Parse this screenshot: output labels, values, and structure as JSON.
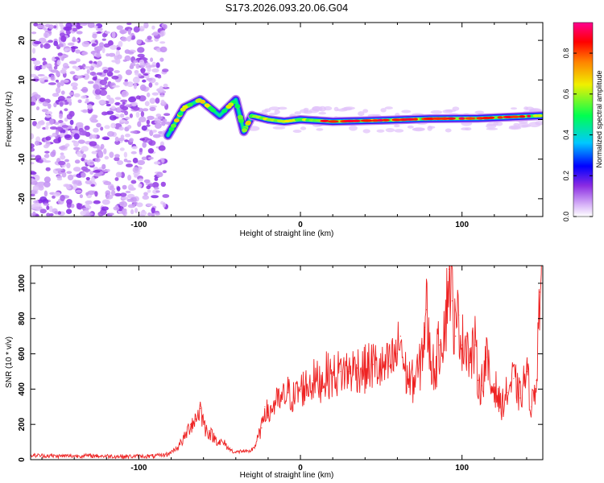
{
  "chart_data": [
    {
      "type": "heatmap",
      "title": "S173.2026.093.20.06.G04",
      "xlabel": "Height of straight line (km)",
      "ylabel": "Frequency (Hz)",
      "xlim": [
        -167,
        150
      ],
      "ylim": [
        -24.5,
        24.5
      ],
      "x_ticks": [
        -100,
        0,
        100
      ],
      "y_ticks": [
        -20,
        -10,
        0,
        10,
        20
      ],
      "colorbar": {
        "label": "Normalized spectral amplitude",
        "range": [
          0.0,
          0.95
        ],
        "ticks": [
          0.0,
          0.2,
          0.4,
          0.6,
          0.8
        ],
        "colors": [
          "#ffffff",
          "#d8b4f8",
          "#8a2be2",
          "#0000ff",
          "#00c8ff",
          "#00ff50",
          "#f0f000",
          "#ff8000",
          "#ff0000",
          "#ff0090"
        ]
      },
      "features": [
        {
          "name": "noise region",
          "x_range": [
            -167,
            -83
          ],
          "f_range": [
            -24.5,
            24.5
          ],
          "amplitude": 0.05
        },
        {
          "name": "diagonal streaks",
          "points": [
            [
              -82,
              -4
            ],
            [
              -72,
              3
            ],
            [
              -62,
              5
            ],
            [
              -50,
              1
            ],
            [
              -40,
              5
            ],
            [
              -35,
              -3
            ],
            [
              -30,
              1
            ]
          ],
          "amplitude": 0.3
        },
        {
          "name": "main signal trace",
          "points": [
            [
              -30,
              1
            ],
            [
              -20,
              0
            ],
            [
              -10,
              -0.5
            ],
            [
              0,
              0
            ],
            [
              20,
              -0.5
            ],
            [
              50,
              -0.2
            ],
            [
              80,
              0.2
            ],
            [
              110,
              0.3
            ],
            [
              150,
              1
            ]
          ],
          "amplitude": 0.8
        }
      ]
    },
    {
      "type": "line",
      "title": "",
      "xlabel": "Height of straight line (km)",
      "ylabel": "SNR (10 * v/v)",
      "xlim": [
        -167,
        150
      ],
      "ylim": [
        0,
        1100
      ],
      "x_ticks": [
        -100,
        0,
        100
      ],
      "y_ticks": [
        0,
        200,
        400,
        600,
        800,
        1000
      ],
      "series": [
        {
          "name": "SNR",
          "color": "#ee2222",
          "x": [
            -167,
            -150,
            -130,
            -110,
            -90,
            -82,
            -76,
            -72,
            -68,
            -65,
            -62,
            -59,
            -56,
            -53,
            -50,
            -47,
            -44,
            -40,
            -36,
            -32,
            -28,
            -24,
            -22,
            -20,
            -16,
            -12,
            -8,
            -4,
            0,
            4,
            8,
            12,
            16,
            20,
            25,
            30,
            35,
            40,
            45,
            50,
            55,
            60,
            62,
            64,
            66,
            70,
            74,
            77,
            78,
            80,
            83,
            86,
            90,
            92,
            94,
            96,
            98,
            100,
            103,
            105,
            108,
            110,
            112,
            115,
            118,
            120,
            124,
            128,
            132,
            136,
            140,
            143,
            146,
            148,
            150
          ],
          "y": [
            25,
            20,
            22,
            18,
            20,
            30,
            70,
            120,
            200,
            230,
            290,
            180,
            150,
            120,
            100,
            90,
            60,
            40,
            50,
            40,
            80,
            180,
            300,
            250,
            320,
            330,
            380,
            350,
            400,
            420,
            450,
            440,
            480,
            470,
            500,
            500,
            520,
            510,
            540,
            510,
            530,
            600,
            700,
            520,
            470,
            440,
            520,
            750,
            850,
            600,
            500,
            650,
            800,
            1080,
            900,
            700,
            820,
            650,
            700,
            550,
            650,
            450,
            420,
            580,
            400,
            430,
            300,
            380,
            460,
            350,
            500,
            300,
            450,
            950,
            1000
          ]
        }
      ]
    }
  ]
}
